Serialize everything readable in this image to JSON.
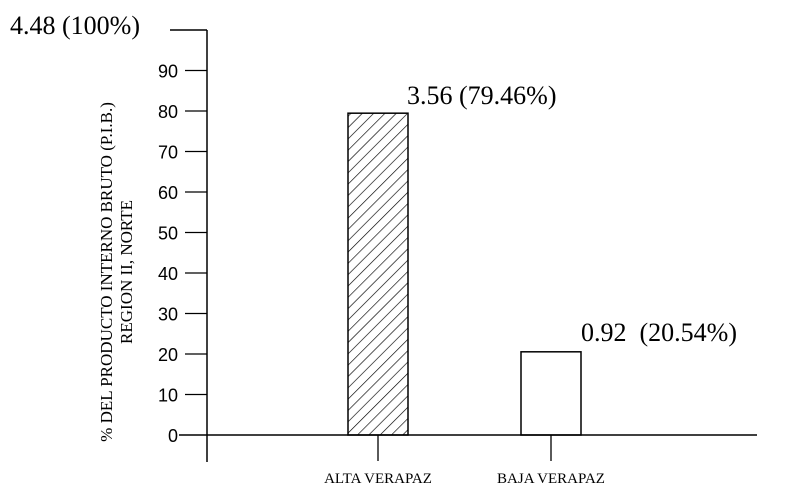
{
  "chart_data": {
    "type": "bar",
    "categories": [
      "ALTA VERAPAZ",
      "BAJA VERAPAZ"
    ],
    "values": [
      79.46,
      20.54
    ],
    "data_labels": [
      "3.56 (79.46%)",
      "0.92  (20.54%)"
    ],
    "top_label": "4.48 (100%)",
    "ylabel_lines": [
      "% DEL PRODUCTO INTERNO BRUTO (P.I.B.)",
      "REGION  II, NORTE"
    ],
    "xlabel": "",
    "ylim": [
      0,
      100
    ],
    "yticks": [
      0,
      10,
      20,
      30,
      40,
      50,
      60,
      70,
      80,
      90
    ],
    "bar_fills": [
      "hatched",
      "none"
    ],
    "grid": false,
    "colors": {
      "ink": "#000000",
      "background": "#ffffff"
    }
  }
}
